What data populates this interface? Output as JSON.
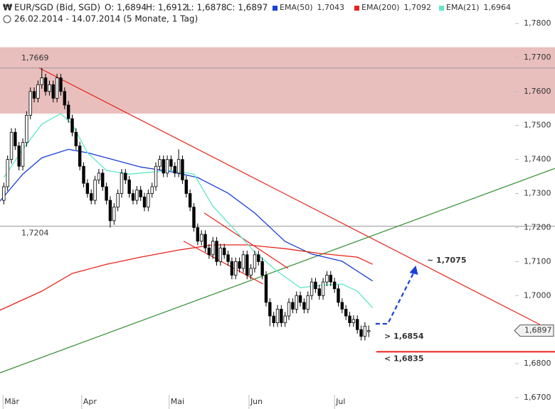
{
  "chart_data": {
    "type": "candlestick",
    "title": "EUR/SGD (Bid, SGD)",
    "quote": [
      "O: 1,6894",
      "H: 1,6912",
      "L: 1,6878",
      "C: 1,6897"
    ],
    "subtitle": "26.02.2014 - 14.07.2014 (5 Monate, 1 Tag)",
    "xlim": [
      -1,
      145
    ],
    "ylim": [
      1.67,
      1.78
    ],
    "xticks": [
      {
        "value": 1.3,
        "label": "Mär"
      },
      {
        "value": 22,
        "label": "Apr"
      },
      {
        "value": 45,
        "label": "Mai"
      },
      {
        "value": 66,
        "label": "Jun"
      },
      {
        "value": 88.5,
        "label": "Jul"
      }
    ],
    "yticks": [
      {
        "value": 1.67,
        "label": "1,6700"
      },
      {
        "value": 1.68,
        "label": "1,6800"
      },
      {
        "value": 1.69,
        "label": "1,6900"
      },
      {
        "value": 1.7,
        "label": "1,7000"
      },
      {
        "value": 1.71,
        "label": "1,7100"
      },
      {
        "value": 1.72,
        "label": "1,7200"
      },
      {
        "value": 1.73,
        "label": "1,7300"
      },
      {
        "value": 1.74,
        "label": "1,7400"
      },
      {
        "value": 1.75,
        "label": "1,7500"
      },
      {
        "value": 1.76,
        "label": "1,7600"
      },
      {
        "value": 1.77,
        "label": "1,7700"
      },
      {
        "value": 1.78,
        "label": "1,7800"
      }
    ],
    "candles": {
      "up_color": "#ffffff",
      "down_color": "#000000",
      "open": [
        1.728,
        1.732,
        1.74,
        1.748,
        1.744,
        1.738,
        1.745,
        1.753,
        1.76,
        1.758,
        1.762,
        1.764,
        1.76,
        1.762,
        1.758,
        1.764,
        1.76,
        1.756,
        1.752,
        1.748,
        1.744,
        1.738,
        1.733,
        1.73,
        1.728,
        1.734,
        1.736,
        1.732,
        1.728,
        1.722,
        1.726,
        1.73,
        1.736,
        1.734,
        1.73,
        1.728,
        1.731,
        1.729,
        1.726,
        1.73,
        1.732,
        1.738,
        1.74,
        1.736,
        1.74,
        1.738,
        1.736,
        1.74,
        1.734,
        1.73,
        1.726,
        1.72,
        1.716,
        1.718,
        1.714,
        1.712,
        1.716,
        1.71,
        1.714,
        1.712,
        1.71,
        1.706,
        1.71,
        1.708,
        1.712,
        1.706,
        1.708,
        1.712,
        1.71,
        1.706,
        1.698,
        1.694,
        1.692,
        1.696,
        1.692,
        1.694,
        1.698,
        1.696,
        1.7,
        1.698,
        1.696,
        1.7,
        1.704,
        1.702,
        1.7,
        1.704,
        1.706,
        1.704,
        1.702,
        1.698,
        1.696,
        1.694,
        1.692,
        1.693,
        1.69,
        1.688,
        1.6894
      ],
      "high": [
        1.7332,
        1.7412,
        1.7492,
        1.7492,
        1.7452,
        1.7462,
        1.7542,
        1.7612,
        1.7612,
        1.7632,
        1.7669,
        1.7652,
        1.7632,
        1.7632,
        1.7652,
        1.7652,
        1.7612,
        1.7572,
        1.7532,
        1.7492,
        1.7452,
        1.7392,
        1.7342,
        1.7312,
        1.7352,
        1.7372,
        1.7372,
        1.7332,
        1.7292,
        1.7272,
        1.7312,
        1.7372,
        1.7372,
        1.7352,
        1.7312,
        1.7322,
        1.7322,
        1.7302,
        1.7312,
        1.7332,
        1.7392,
        1.7412,
        1.7412,
        1.7412,
        1.7412,
        1.7392,
        1.743,
        1.7412,
        1.7352,
        1.7312,
        1.7272,
        1.7212,
        1.7192,
        1.7192,
        1.7152,
        1.7172,
        1.7172,
        1.7152,
        1.7152,
        1.7132,
        1.7112,
        1.7112,
        1.7112,
        1.7132,
        1.7132,
        1.7092,
        1.7132,
        1.7132,
        1.7112,
        1.7072,
        1.6992,
        1.6952,
        1.6972,
        1.6972,
        1.6952,
        1.6992,
        1.6992,
        1.7012,
        1.7012,
        1.6992,
        1.7012,
        1.7052,
        1.7052,
        1.7032,
        1.7052,
        1.7072,
        1.7072,
        1.7052,
        1.7032,
        1.6992,
        1.6972,
        1.6952,
        1.6942,
        1.6942,
        1.6912,
        1.6922,
        1.6912
      ],
      "low": [
        1.7268,
        1.7308,
        1.7388,
        1.7428,
        1.7368,
        1.7368,
        1.7438,
        1.7518,
        1.7568,
        1.7568,
        1.7608,
        1.7588,
        1.7588,
        1.7568,
        1.7568,
        1.7588,
        1.7548,
        1.7508,
        1.7468,
        1.7428,
        1.7368,
        1.7318,
        1.7288,
        1.7268,
        1.7268,
        1.7328,
        1.7308,
        1.7268,
        1.72,
        1.7208,
        1.7248,
        1.7288,
        1.7328,
        1.7288,
        1.7268,
        1.7268,
        1.7278,
        1.7248,
        1.7248,
        1.7288,
        1.7308,
        1.7368,
        1.7348,
        1.7348,
        1.7368,
        1.7348,
        1.7348,
        1.7328,
        1.7288,
        1.7248,
        1.7188,
        1.7148,
        1.7148,
        1.7128,
        1.7108,
        1.7108,
        1.7088,
        1.7088,
        1.7108,
        1.7088,
        1.7048,
        1.7048,
        1.7068,
        1.7068,
        1.7048,
        1.7048,
        1.7068,
        1.7088,
        1.7048,
        1.6968,
        1.691,
        1.6908,
        1.6908,
        1.6908,
        1.6908,
        1.6928,
        1.6948,
        1.6948,
        1.6968,
        1.6948,
        1.6948,
        1.6988,
        1.7008,
        1.6988,
        1.6988,
        1.7028,
        1.7028,
        1.7008,
        1.6968,
        1.6948,
        1.6928,
        1.6908,
        1.6908,
        1.6888,
        1.6868,
        1.6868,
        1.6878
      ],
      "close": [
        1.732,
        1.74,
        1.748,
        1.744,
        1.738,
        1.745,
        1.753,
        1.76,
        1.758,
        1.762,
        1.764,
        1.76,
        1.762,
        1.758,
        1.764,
        1.76,
        1.756,
        1.752,
        1.748,
        1.744,
        1.738,
        1.733,
        1.73,
        1.728,
        1.734,
        1.736,
        1.732,
        1.728,
        1.722,
        1.726,
        1.73,
        1.736,
        1.734,
        1.73,
        1.728,
        1.731,
        1.729,
        1.726,
        1.73,
        1.732,
        1.738,
        1.74,
        1.736,
        1.74,
        1.738,
        1.736,
        1.74,
        1.734,
        1.73,
        1.726,
        1.72,
        1.716,
        1.718,
        1.714,
        1.712,
        1.716,
        1.71,
        1.714,
        1.712,
        1.71,
        1.706,
        1.71,
        1.708,
        1.712,
        1.706,
        1.708,
        1.712,
        1.71,
        1.706,
        1.698,
        1.694,
        1.692,
        1.696,
        1.692,
        1.694,
        1.698,
        1.696,
        1.7,
        1.698,
        1.696,
        1.7,
        1.704,
        1.702,
        1.7,
        1.704,
        1.706,
        1.704,
        1.702,
        1.698,
        1.696,
        1.694,
        1.692,
        1.693,
        1.69,
        1.688,
        1.691,
        1.6897
      ]
    },
    "series": [
      {
        "name": "EMA(50)",
        "color": "#1a3fd6",
        "last_label": "1,7043",
        "x": [
          -1,
          5,
          10,
          17,
          22,
          27,
          36,
          44,
          51,
          59,
          66,
          74,
          81,
          89,
          97
        ],
        "values": [
          1.7278,
          1.7357,
          1.7405,
          1.743,
          1.742,
          1.7405,
          1.7378,
          1.7364,
          1.7347,
          1.7301,
          1.7243,
          1.7159,
          1.7122,
          1.7101,
          1.7043
        ]
      },
      {
        "name": "EMA(200)",
        "color": "#e8231b",
        "last_label": "1,7092",
        "x": [
          -1,
          10,
          18,
          27,
          36,
          46,
          55,
          64,
          74,
          83,
          93,
          97
        ],
        "values": [
          1.6957,
          1.7013,
          1.7065,
          1.7092,
          1.7113,
          1.7134,
          1.7149,
          1.7149,
          1.7138,
          1.7124,
          1.7113,
          1.7092
        ]
      },
      {
        "name": "EMA(21)",
        "color": "#5fe8c8",
        "last_label": "1,6964",
        "x": [
          0,
          5,
          10,
          15,
          18,
          22,
          27,
          33,
          38,
          44,
          50,
          55,
          61,
          66,
          72,
          78,
          83,
          89,
          93,
          97
        ],
        "values": [
          1.7347,
          1.743,
          1.7504,
          1.7535,
          1.7504,
          1.742,
          1.7368,
          1.7357,
          1.7362,
          1.7368,
          1.7357,
          1.7263,
          1.719,
          1.7128,
          1.7071,
          1.7023,
          1.703,
          1.7034,
          1.7013,
          1.6964
        ]
      }
    ],
    "zone": {
      "from": 1.7535,
      "to": 1.773,
      "color": "#e8bfbd"
    },
    "levels": [
      {
        "value": 1.7669,
        "label": "1,7669"
      },
      {
        "value": 1.7204,
        "label": "1,7204"
      }
    ],
    "trendlines": [
      {
        "x": [
          9.3,
          141
        ],
        "y": [
          1.7669,
          1.6915
        ],
        "color": "#e8231b"
      },
      {
        "x": [
          -1,
          145
        ],
        "y": [
          1.6773,
          1.7374
        ],
        "color": "#2e8b2e"
      },
      {
        "x": [
          52.7,
          74.8
        ],
        "y": [
          1.7243,
          1.708
        ],
        "color": "#e8231b"
      },
      {
        "x": [
          47.3,
          68.2
        ],
        "y": [
          1.716,
          1.7034
        ],
        "color": "#e8231b"
      }
    ],
    "projection": {
      "x": [
        97.8,
        101,
        108.4
      ],
      "y": [
        1.6917,
        1.6917,
        1.708
      ],
      "color": "#1a3fd6",
      "label": "~ 1,7075"
    },
    "target_label": "> 1,6854",
    "support": {
      "value": 1.6835,
      "x": 98,
      "label": "< 1,6835",
      "color": "#e8231b"
    },
    "last_price": {
      "value": 1.6897,
      "label": "1,6897"
    }
  }
}
